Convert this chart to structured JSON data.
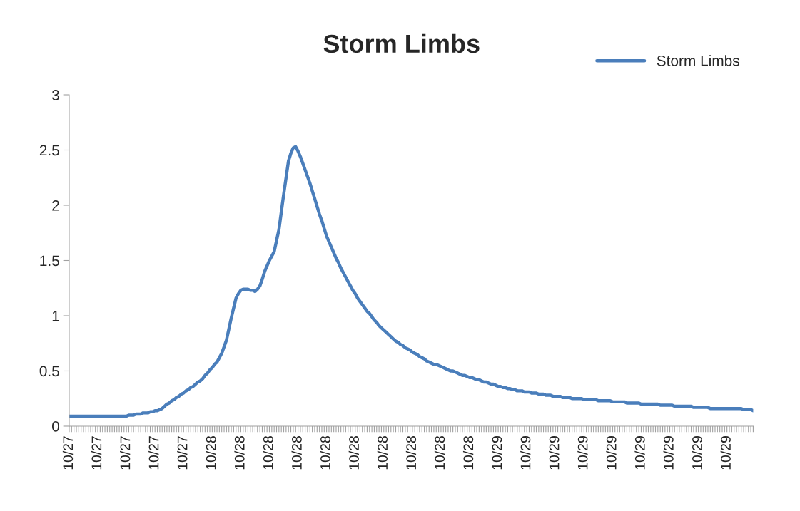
{
  "chart_data": {
    "type": "line",
    "title": "Storm Limbs",
    "categories": [
      "10/27",
      null,
      null,
      null,
      null,
      null,
      null,
      null,
      null,
      null,
      null,
      null,
      "10/27",
      null,
      null,
      null,
      null,
      null,
      null,
      null,
      null,
      null,
      null,
      null,
      "10/27",
      null,
      null,
      null,
      null,
      null,
      null,
      null,
      null,
      null,
      null,
      null,
      "10/27",
      null,
      null,
      null,
      null,
      null,
      null,
      null,
      null,
      null,
      null,
      null,
      "10/27",
      null,
      null,
      null,
      null,
      null,
      null,
      null,
      null,
      null,
      null,
      null,
      "10/28",
      null,
      null,
      null,
      null,
      null,
      null,
      null,
      null,
      null,
      null,
      null,
      "10/28",
      null,
      null,
      null,
      null,
      null,
      null,
      null,
      null,
      null,
      null,
      null,
      "10/28",
      null,
      null,
      null,
      null,
      null,
      null,
      null,
      null,
      null,
      null,
      null,
      "10/28",
      null,
      null,
      null,
      null,
      null,
      null,
      null,
      null,
      null,
      null,
      null,
      "10/28",
      null,
      null,
      null,
      null,
      null,
      null,
      null,
      null,
      null,
      null,
      null,
      "10/28",
      null,
      null,
      null,
      null,
      null,
      null,
      null,
      null,
      null,
      null,
      null,
      "10/28",
      null,
      null,
      null,
      null,
      null,
      null,
      null,
      null,
      null,
      null,
      null,
      "10/28",
      null,
      null,
      null,
      null,
      null,
      null,
      null,
      null,
      null,
      null,
      null,
      "10/28",
      null,
      null,
      null,
      null,
      null,
      null,
      null,
      null,
      null,
      null,
      null,
      "10/28",
      null,
      null,
      null,
      null,
      null,
      null,
      null,
      null,
      null,
      null,
      null,
      "10/29",
      null,
      null,
      null,
      null,
      null,
      null,
      null,
      null,
      null,
      null,
      null,
      "10/29",
      null,
      null,
      null,
      null,
      null,
      null,
      null,
      null,
      null,
      null,
      null,
      "10/29",
      null,
      null,
      null,
      null,
      null,
      null,
      null,
      null,
      null,
      null,
      null,
      "10/29",
      null,
      null,
      null,
      null,
      null,
      null,
      null,
      null,
      null,
      null,
      null,
      "10/29",
      null,
      null,
      null,
      null,
      null,
      null,
      null,
      null,
      null,
      null,
      null,
      "10/29",
      null,
      null,
      null,
      null,
      null,
      null,
      null,
      null,
      null,
      null,
      null,
      "10/29",
      null,
      null,
      null,
      null,
      null,
      null,
      null,
      null,
      null,
      null,
      null,
      "10/29",
      null,
      null,
      null,
      null,
      null,
      null,
      null,
      null,
      null,
      null,
      null,
      "10/29",
      null,
      null,
      null,
      null,
      null,
      null,
      null,
      null,
      null,
      null,
      null
    ],
    "series": [
      {
        "name": "Storm Limbs",
        "color": "#4a7ebb",
        "values": [
          0.09,
          0.09,
          0.09,
          0.09,
          0.09,
          0.09,
          0.09,
          0.09,
          0.09,
          0.09,
          0.09,
          0.09,
          0.09,
          0.09,
          0.09,
          0.09,
          0.09,
          0.09,
          0.09,
          0.09,
          0.09,
          0.09,
          0.09,
          0.09,
          0.09,
          0.1,
          0.1,
          0.1,
          0.11,
          0.11,
          0.11,
          0.12,
          0.12,
          0.12,
          0.13,
          0.13,
          0.14,
          0.14,
          0.15,
          0.16,
          0.18,
          0.2,
          0.21,
          0.23,
          0.24,
          0.26,
          0.27,
          0.29,
          0.3,
          0.32,
          0.33,
          0.35,
          0.36,
          0.38,
          0.4,
          0.41,
          0.43,
          0.46,
          0.48,
          0.51,
          0.53,
          0.56,
          0.58,
          0.62,
          0.66,
          0.72,
          0.78,
          0.88,
          0.98,
          1.07,
          1.16,
          1.2,
          1.23,
          1.24,
          1.24,
          1.24,
          1.23,
          1.23,
          1.22,
          1.24,
          1.27,
          1.33,
          1.4,
          1.45,
          1.5,
          1.54,
          1.58,
          1.68,
          1.78,
          1.94,
          2.1,
          2.25,
          2.4,
          2.47,
          2.52,
          2.53,
          2.49,
          2.44,
          2.38,
          2.32,
          2.26,
          2.2,
          2.13,
          2.06,
          1.99,
          1.92,
          1.86,
          1.79,
          1.72,
          1.67,
          1.62,
          1.57,
          1.52,
          1.48,
          1.43,
          1.39,
          1.35,
          1.31,
          1.27,
          1.23,
          1.2,
          1.16,
          1.13,
          1.1,
          1.07,
          1.04,
          1.02,
          0.99,
          0.96,
          0.94,
          0.91,
          0.89,
          0.87,
          0.85,
          0.83,
          0.81,
          0.79,
          0.77,
          0.76,
          0.74,
          0.73,
          0.71,
          0.7,
          0.69,
          0.67,
          0.66,
          0.65,
          0.63,
          0.62,
          0.61,
          0.59,
          0.58,
          0.57,
          0.56,
          0.56,
          0.55,
          0.54,
          0.53,
          0.52,
          0.51,
          0.5,
          0.5,
          0.49,
          0.48,
          0.47,
          0.46,
          0.46,
          0.45,
          0.44,
          0.44,
          0.43,
          0.42,
          0.42,
          0.41,
          0.4,
          0.4,
          0.39,
          0.38,
          0.38,
          0.37,
          0.36,
          0.36,
          0.35,
          0.35,
          0.34,
          0.34,
          0.33,
          0.33,
          0.32,
          0.32,
          0.32,
          0.31,
          0.31,
          0.31,
          0.3,
          0.3,
          0.3,
          0.29,
          0.29,
          0.29,
          0.28,
          0.28,
          0.28,
          0.27,
          0.27,
          0.27,
          0.27,
          0.26,
          0.26,
          0.26,
          0.26,
          0.25,
          0.25,
          0.25,
          0.25,
          0.25,
          0.24,
          0.24,
          0.24,
          0.24,
          0.24,
          0.24,
          0.23,
          0.23,
          0.23,
          0.23,
          0.23,
          0.23,
          0.22,
          0.22,
          0.22,
          0.22,
          0.22,
          0.22,
          0.21,
          0.21,
          0.21,
          0.21,
          0.21,
          0.21,
          0.2,
          0.2,
          0.2,
          0.2,
          0.2,
          0.2,
          0.2,
          0.2,
          0.19,
          0.19,
          0.19,
          0.19,
          0.19,
          0.19,
          0.18,
          0.18,
          0.18,
          0.18,
          0.18,
          0.18,
          0.18,
          0.18,
          0.17,
          0.17,
          0.17,
          0.17,
          0.17,
          0.17,
          0.17,
          0.16,
          0.16,
          0.16,
          0.16,
          0.16,
          0.16,
          0.16,
          0.16,
          0.16,
          0.16,
          0.16,
          0.16,
          0.16,
          0.16,
          0.15,
          0.15,
          0.15,
          0.15,
          0.14
        ]
      }
    ],
    "ylim": [
      0,
      3
    ],
    "yticks": [
      0,
      0.5,
      1,
      1.5,
      2,
      2.5,
      3
    ],
    "grid": false,
    "legend": "top right",
    "marker": "none",
    "line_style": "solid"
  }
}
